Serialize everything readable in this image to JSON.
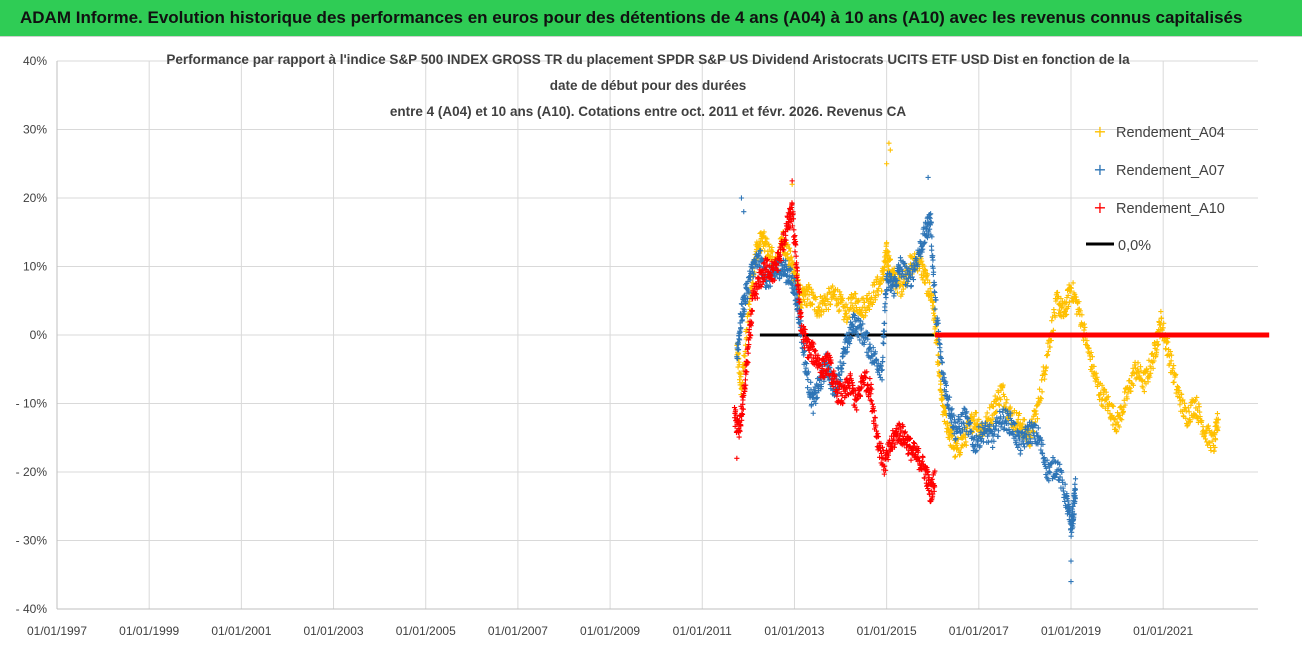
{
  "header": {
    "title": "ADAM Informe. Evolution historique des performances en euros pour des détentions de 4 ans (A04) à 10 ans (A10) avec les revenus connus capitalisés"
  },
  "colors": {
    "header_bg": "#2fcc55",
    "a04": "#ffc000",
    "a07": "#2e75b6",
    "a10": "#ff0000",
    "zero": "#000000"
  },
  "chart_data": {
    "type": "scatter",
    "title_lines": [
      "Performance par rapport à l'indice S&P 500 INDEX GROSS TR  du placement SPDR S&P US Dividend Aristocrats UCITS ETF USD Dist en fonction de la",
      "date de début pour des durées",
      "entre 4 (A04) et 10 ans (A10).  Cotations entre oct. 2011 et févr. 2026. Revenus CA"
    ],
    "x_tick_labels": [
      "01/01/1997",
      "01/01/1999",
      "01/01/2001",
      "01/01/2003",
      "01/01/2005",
      "01/01/2007",
      "01/01/2009",
      "01/01/2011",
      "01/01/2013",
      "01/01/2015",
      "01/01/2017",
      "01/01/2019",
      "01/01/2021"
    ],
    "x_tick_years": [
      1997,
      1999,
      2001,
      2003,
      2005,
      2007,
      2009,
      2011,
      2013,
      2015,
      2017,
      2019,
      2021
    ],
    "x_range": [
      1997,
      2023.3
    ],
    "y_tick_labels": [
      "40%",
      "30%",
      "20%",
      "10%",
      "0%",
      "- 10%",
      "- 20%",
      "- 30%",
      "- 40%"
    ],
    "y_tick_values": [
      40,
      30,
      20,
      10,
      0,
      -10,
      -20,
      -30,
      -40
    ],
    "ylim": [
      -40,
      40
    ],
    "grid": true,
    "legend_position": "right",
    "series": [
      {
        "name": "Rendement_A04",
        "color": "#ffc000",
        "x": [
          2011.75,
          2011.85,
          2012.0,
          2012.15,
          2012.3,
          2012.45,
          2012.6,
          2012.75,
          2012.9,
          2013.0,
          2013.15,
          2013.3,
          2013.5,
          2013.7,
          2013.9,
          2014.1,
          2014.3,
          2014.5,
          2014.7,
          2014.9,
          2015.0,
          2015.1,
          2015.3,
          2015.5,
          2015.7,
          2015.85,
          2016.0,
          2016.1,
          2016.2,
          2016.35,
          2016.5,
          2016.7,
          2016.9,
          2017.1,
          2017.3,
          2017.5,
          2017.7,
          2017.9,
          2018.1,
          2018.3,
          2018.5,
          2018.7,
          2018.85,
          2019.0,
          2019.2,
          2019.4,
          2019.6,
          2019.8,
          2020.0,
          2020.2,
          2020.4,
          2020.6,
          2020.8,
          2020.95,
          2021.1,
          2021.3,
          2021.5,
          2021.7,
          2021.9,
          2022.1,
          2022.2
        ],
        "y": [
          -2,
          -8,
          3,
          12,
          14,
          12,
          10,
          14,
          11,
          9,
          5,
          6,
          4,
          5,
          6,
          3,
          5,
          4,
          6,
          8,
          12,
          9,
          7,
          10,
          11,
          8,
          5,
          -2,
          -10,
          -14,
          -17,
          -15,
          -12,
          -14,
          -11,
          -8,
          -12,
          -13,
          -15,
          -10,
          -2,
          5,
          3,
          7,
          3,
          -3,
          -8,
          -10,
          -13,
          -9,
          -5,
          -7,
          -3,
          2,
          -2,
          -8,
          -12,
          -10,
          -14,
          -16,
          -12
        ],
        "outliers": [
          [
            2015.05,
            28
          ],
          [
            2015.08,
            27
          ],
          [
            2012.95,
            22
          ],
          [
            2015.0,
            25
          ]
        ]
      },
      {
        "name": "Rendement_A07",
        "color": "#2e75b6",
        "x": [
          2011.75,
          2011.85,
          2011.95,
          2012.1,
          2012.25,
          2012.4,
          2012.55,
          2012.7,
          2012.85,
          2013.0,
          2013.1,
          2013.25,
          2013.4,
          2013.55,
          2013.7,
          2013.85,
          2014.0,
          2014.15,
          2014.3,
          2014.5,
          2014.7,
          2014.9,
          2015.0,
          2015.15,
          2015.3,
          2015.5,
          2015.7,
          2015.85,
          2015.95,
          2016.05,
          2016.2,
          2016.35,
          2016.5,
          2016.7,
          2016.9,
          2017.1,
          2017.3,
          2017.5,
          2017.7,
          2017.9,
          2018.1,
          2018.3,
          2018.5,
          2018.7,
          2018.9,
          2019.0,
          2019.05,
          2019.1
        ],
        "y": [
          -3,
          3,
          6,
          10,
          11,
          8,
          9,
          10,
          9,
          7,
          3,
          -5,
          -10,
          -7,
          -4,
          -8,
          -5,
          -1,
          2,
          0,
          -3,
          -5,
          8,
          7,
          10,
          8,
          12,
          15,
          17,
          5,
          -5,
          -10,
          -14,
          -12,
          -16,
          -14,
          -15,
          -12,
          -13,
          -16,
          -14,
          -15,
          -20,
          -19,
          -24,
          -28,
          -26,
          -22
        ],
        "outliers": [
          [
            2011.85,
            20
          ],
          [
            2011.9,
            18
          ],
          [
            2019.0,
            -36
          ],
          [
            2019.0,
            -33
          ],
          [
            2015.9,
            23
          ]
        ]
      },
      {
        "name": "Rendement_A10",
        "color": "#ff0000",
        "x": [
          2011.7,
          2011.8,
          2011.9,
          2012.0,
          2012.1,
          2012.25,
          2012.4,
          2012.55,
          2012.7,
          2012.85,
          2012.95,
          2013.05,
          2013.15,
          2013.3,
          2013.45,
          2013.6,
          2013.75,
          2013.9,
          2014.05,
          2014.2,
          2014.35,
          2014.5,
          2014.65,
          2014.8,
          2014.95,
          2015.1,
          2015.25,
          2015.4,
          2015.55,
          2015.7,
          2015.85,
          2015.95,
          2016.05
        ],
        "y": [
          -12,
          -14,
          -9,
          -2,
          5,
          8,
          10,
          9,
          12,
          16,
          18,
          10,
          1,
          -2,
          -3,
          -5,
          -4,
          -8,
          -9,
          -7,
          -10,
          -6,
          -8,
          -15,
          -19,
          -16,
          -14,
          -15,
          -17,
          -18,
          -20,
          -23,
          -21
        ],
        "outliers": [
          [
            2012.95,
            22.5
          ],
          [
            2011.75,
            -18
          ]
        ]
      }
    ],
    "zero_line": {
      "name": "0,0%",
      "color": "#000000",
      "x_start": 2012.25,
      "x_end": 2016.05,
      "y": 0
    },
    "red_zero_segment": {
      "color": "#ff0000",
      "x_start": 2016.05,
      "x_end": 2023.3,
      "y": 0
    }
  }
}
